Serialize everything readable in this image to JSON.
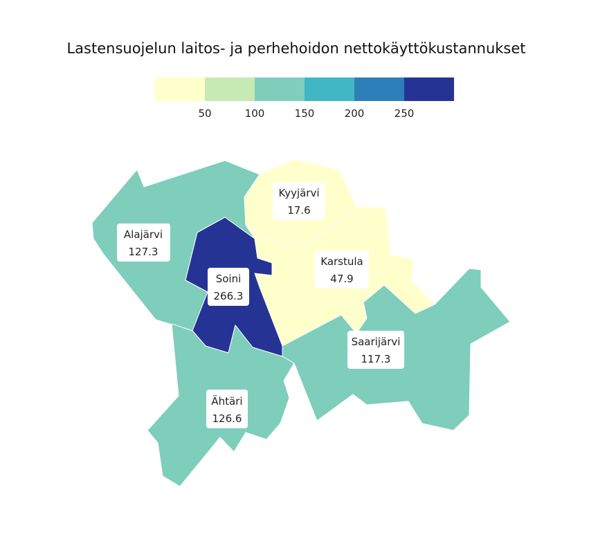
{
  "title": "Lastensuojelun laitos- ja perhehoidon nettokäyttökustannukset",
  "legend": {
    "bins": [
      {
        "color": "#ffffcc"
      },
      {
        "color": "#c7e9b4"
      },
      {
        "color": "#7fcdbb"
      },
      {
        "color": "#41b6c4"
      },
      {
        "color": "#2c7fb8"
      },
      {
        "color": "#253494"
      }
    ],
    "ticks": [
      "50",
      "100",
      "150",
      "200",
      "250"
    ]
  },
  "chart_data": {
    "type": "choropleth",
    "regions": [
      {
        "name": "Alajärvi",
        "value": "127.3",
        "color": "#7fcdbb"
      },
      {
        "name": "Soini",
        "value": "266.3",
        "color": "#253494"
      },
      {
        "name": "Kyyjärvi",
        "value": "17.6",
        "color": "#ffffcc"
      },
      {
        "name": "Karstula",
        "value": "47.9",
        "color": "#ffffcc"
      },
      {
        "name": "Saarijärvi",
        "value": "117.3",
        "color": "#7fcdbb"
      },
      {
        "name": "Ähtäri",
        "value": "126.6",
        "color": "#7fcdbb"
      }
    ]
  }
}
